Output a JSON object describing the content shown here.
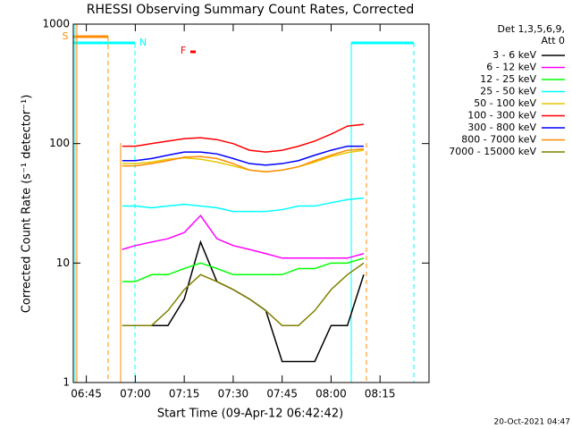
{
  "chart_data": {
    "type": "line",
    "title": "RHESSI Observing Summary Count Rates, Corrected",
    "x_label": "Start Time (09-Apr-12 06:42:42)",
    "y_label": "Corrected Count Rate (s⁻¹ detector⁻¹)",
    "legend_title": [
      "Det 1,3,5,6,9,",
      "Att 0"
    ],
    "annotations": [
      "S",
      "N",
      "F"
    ],
    "timestamp": "20-Oct-2021 04:47",
    "log_y": true,
    "xlim": [
      401,
      510
    ],
    "ylim": [
      1,
      1000
    ],
    "xticks": [
      {
        "value": 405,
        "label": "06:45"
      },
      {
        "value": 420,
        "label": "07:00"
      },
      {
        "value": 435,
        "label": "07:15"
      },
      {
        "value": 450,
        "label": "07:30"
      },
      {
        "value": 465,
        "label": "07:45"
      },
      {
        "value": 480,
        "label": "08:00"
      },
      {
        "value": 495,
        "label": "08:15"
      }
    ],
    "yticks": [
      1,
      10,
      100,
      1000
    ],
    "x": [
      416,
      420,
      425,
      430,
      435,
      440,
      445,
      450,
      455,
      460,
      465,
      470,
      475,
      480,
      485,
      490
    ],
    "series": [
      {
        "name": "3 - 6 keV",
        "color": "#000000",
        "values": [
          3,
          3,
          3,
          3,
          5,
          15,
          7,
          6,
          5,
          4,
          1.5,
          1.5,
          1.5,
          3,
          3,
          8
        ]
      },
      {
        "name": "6 - 12 keV",
        "color": "#ff00ff",
        "values": [
          13,
          14,
          15,
          16,
          18,
          25,
          16,
          14,
          13,
          12,
          11,
          11,
          11,
          11,
          11,
          12
        ]
      },
      {
        "name": "12 - 25 keV",
        "color": "#00ff00",
        "values": [
          7,
          7,
          8,
          8,
          9,
          10,
          9,
          8,
          8,
          8,
          8,
          9,
          9,
          10,
          10,
          11
        ]
      },
      {
        "name": "25 - 50 keV",
        "color": "#00ffff",
        "values": [
          30,
          30,
          29,
          30,
          31,
          30,
          29,
          27,
          27,
          27,
          28,
          30,
          30,
          32,
          34,
          35
        ]
      },
      {
        "name": "50 - 100 keV",
        "color": "#e6c800",
        "values": [
          68,
          68,
          70,
          74,
          76,
          74,
          70,
          65,
          60,
          58,
          60,
          64,
          70,
          78,
          84,
          88
        ]
      },
      {
        "name": "100 - 300 keV",
        "color": "#ff0000",
        "values": [
          95,
          95,
          100,
          105,
          110,
          112,
          108,
          100,
          88,
          85,
          88,
          95,
          105,
          120,
          140,
          145
        ]
      },
      {
        "name": "300 - 800 keV",
        "color": "#0000ff",
        "values": [
          72,
          72,
          75,
          80,
          85,
          85,
          82,
          75,
          68,
          66,
          68,
          72,
          80,
          88,
          95,
          95
        ]
      },
      {
        "name": "800 - 7000 keV",
        "color": "#ff8c00",
        "values": [
          65,
          65,
          68,
          72,
          77,
          78,
          75,
          68,
          60,
          58,
          60,
          64,
          72,
          80,
          88,
          90
        ]
      },
      {
        "name": "7000 - 15000 keV",
        "color": "#808000",
        "values": [
          3,
          3,
          3,
          4,
          6,
          8,
          7,
          6,
          5,
          4,
          3,
          3,
          4,
          6,
          8,
          10
        ]
      }
    ]
  }
}
